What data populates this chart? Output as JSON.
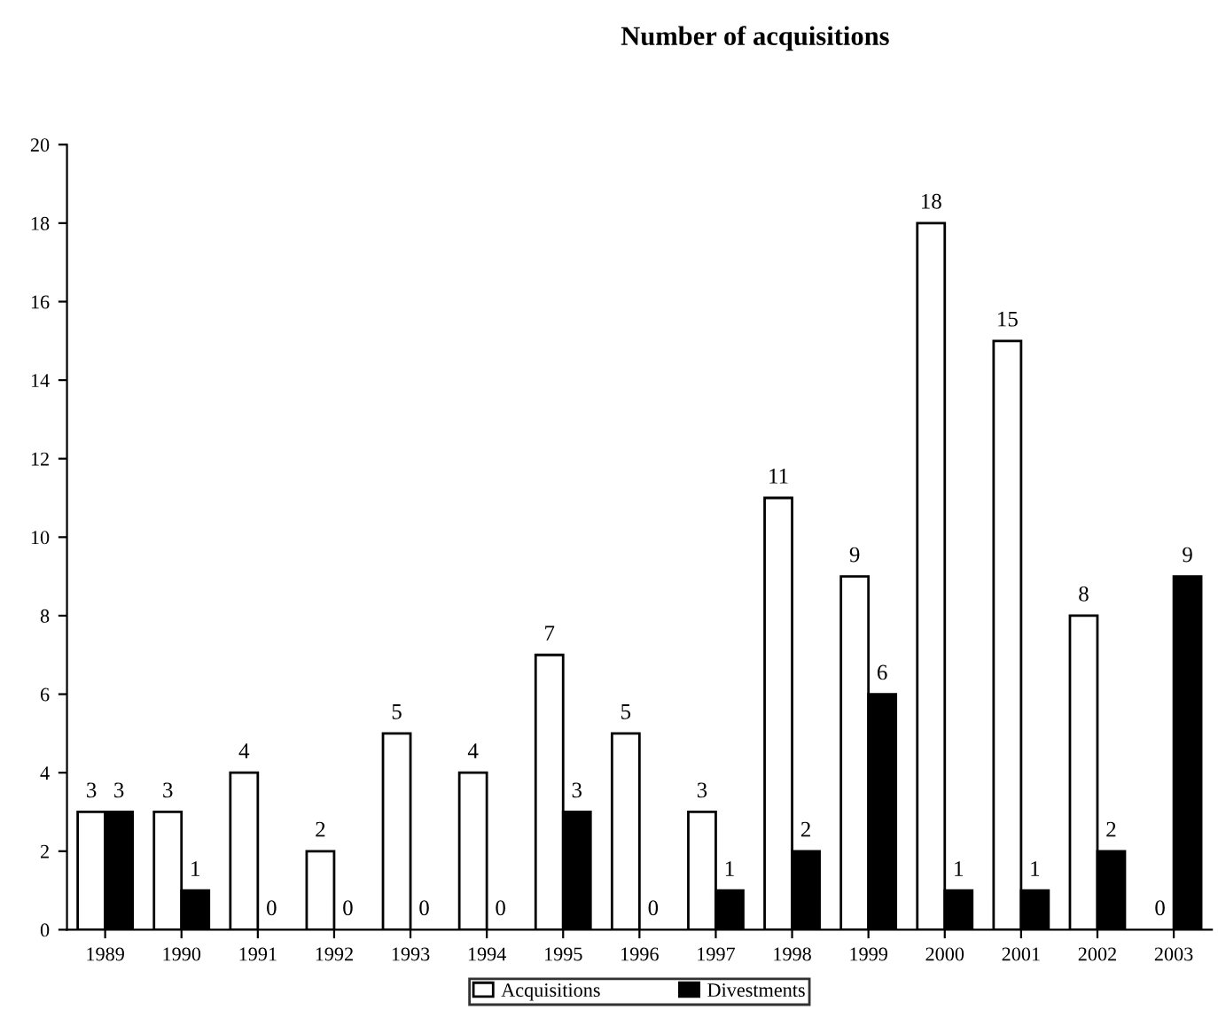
{
  "chart_data": {
    "type": "bar",
    "title": "Number of acquisitions",
    "categories": [
      "1989",
      "1990",
      "1991",
      "1992",
      "1993",
      "1994",
      "1995",
      "1996",
      "1997",
      "1998",
      "1999",
      "2000",
      "2001",
      "2002",
      "2003"
    ],
    "series": [
      {
        "name": "Acquisitions",
        "color": "#ffffff",
        "values": [
          3,
          3,
          4,
          2,
          5,
          4,
          7,
          5,
          3,
          11,
          9,
          18,
          15,
          8,
          0
        ]
      },
      {
        "name": "Divestments",
        "color": "#000000",
        "values": [
          3,
          1,
          0,
          0,
          0,
          0,
          3,
          0,
          1,
          2,
          6,
          1,
          1,
          2,
          9
        ]
      }
    ],
    "ylim": [
      0,
      20
    ],
    "yticks": [
      0,
      2,
      4,
      6,
      8,
      10,
      12,
      14,
      16,
      18,
      20
    ],
    "data_labels": true,
    "grid": false,
    "legend": "bottom"
  }
}
